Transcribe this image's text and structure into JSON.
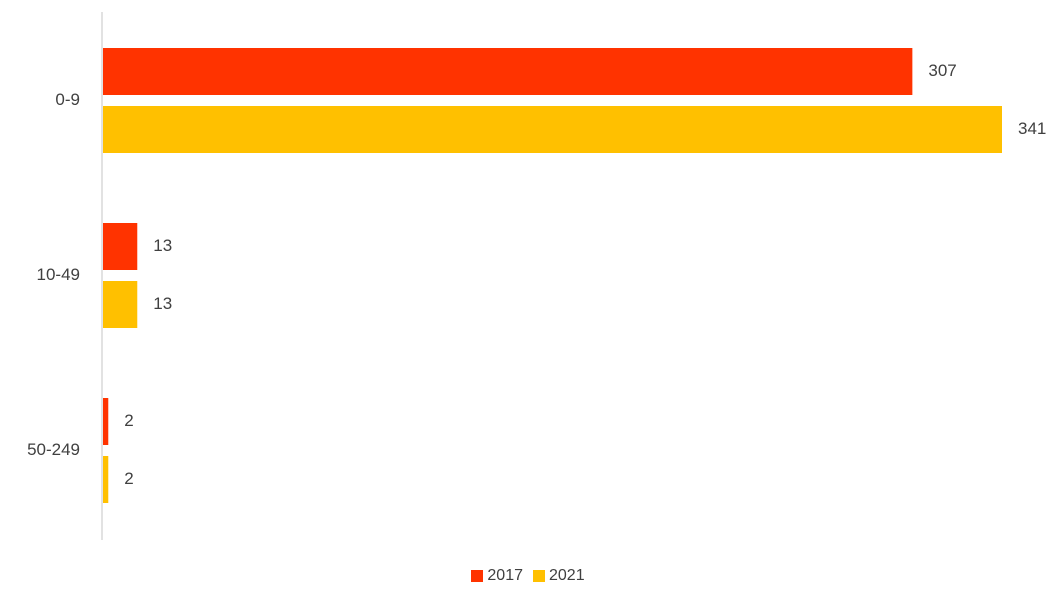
{
  "chart_data": {
    "type": "bar",
    "orientation": "horizontal",
    "categories": [
      "0-9",
      "10-49",
      "50-249"
    ],
    "series": [
      {
        "name": "2017",
        "color": "#ff3300",
        "values": [
          307,
          13,
          2
        ]
      },
      {
        "name": "2021",
        "color": "#ffc000",
        "values": [
          341,
          13,
          2
        ]
      }
    ],
    "xlim": [
      0,
      341
    ],
    "grid": false,
    "legend_position": "bottom",
    "title": "",
    "xlabel": "",
    "ylabel": ""
  }
}
